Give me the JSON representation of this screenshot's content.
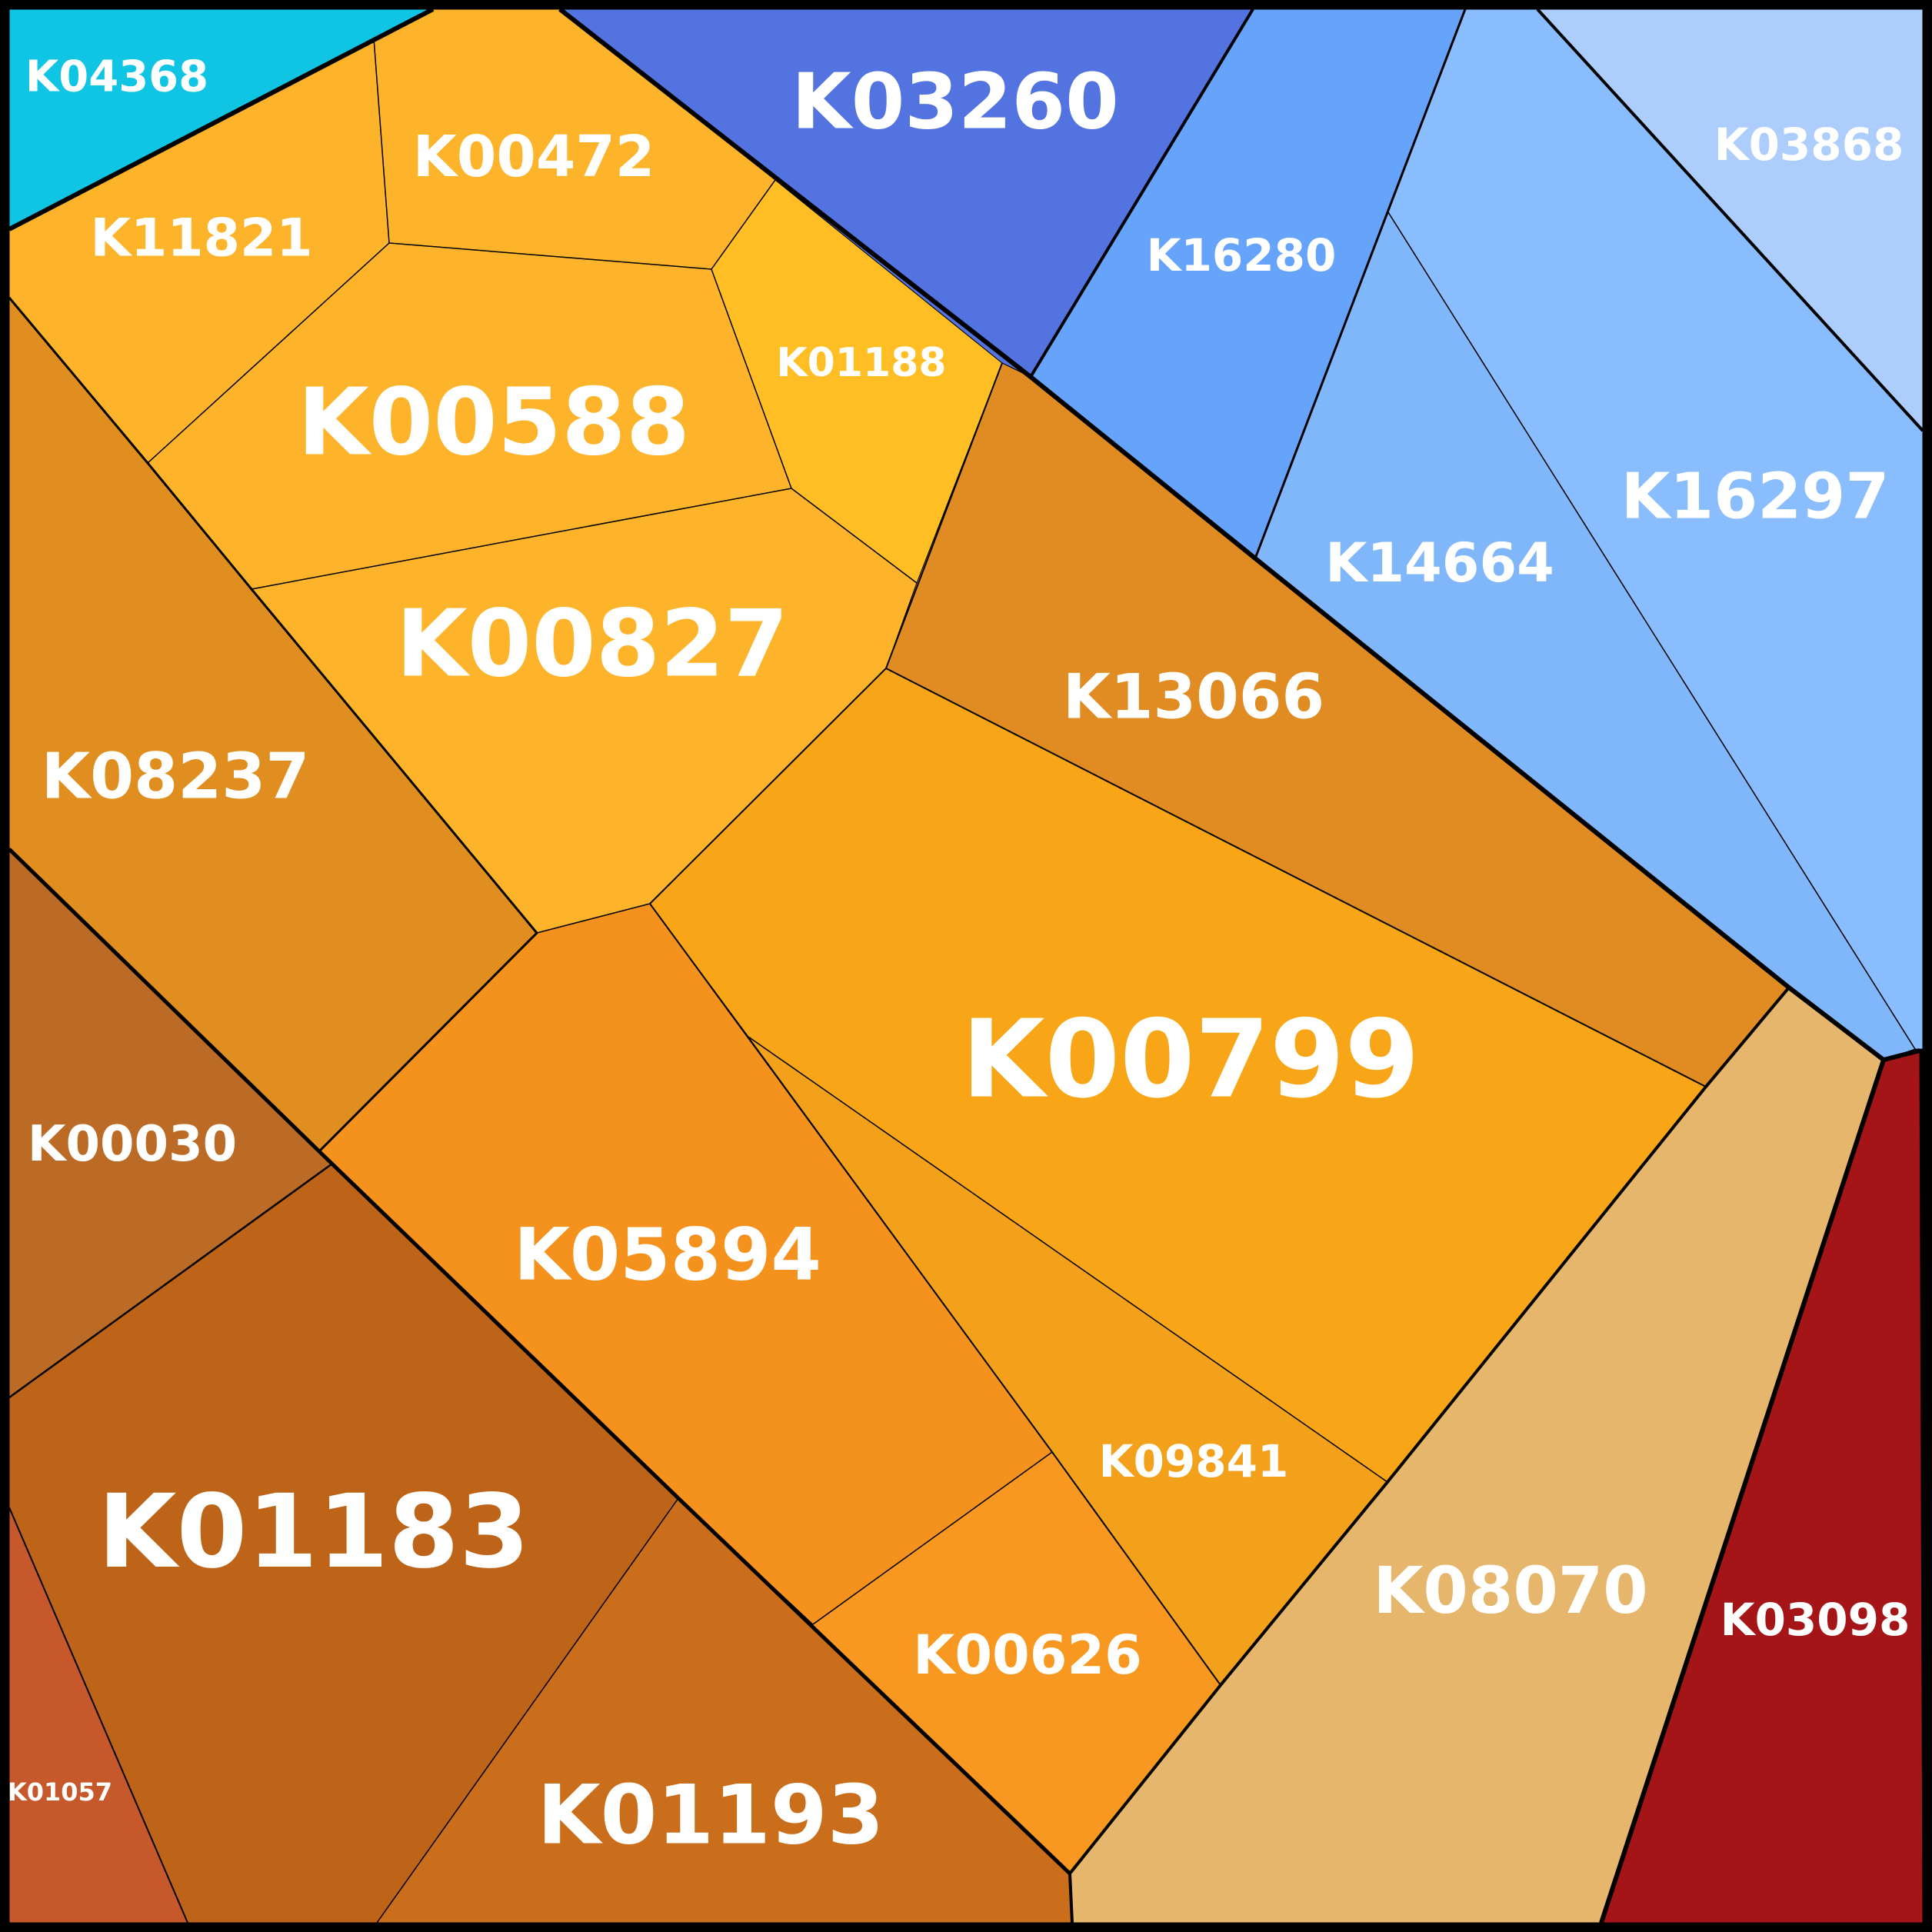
{
  "title": "",
  "cells": [
    {
      "id": "K04368",
      "label": "K04368",
      "color": "#10C5E4"
    },
    {
      "id": "K11821",
      "label": "K11821",
      "color": "#FDB42A"
    },
    {
      "id": "K00472",
      "label": "K00472",
      "color": "#FDB42A"
    },
    {
      "id": "K00588",
      "label": "K00588",
      "color": "#FDB42A"
    },
    {
      "id": "K01188",
      "label": "K01188",
      "color": "#FFBE24"
    },
    {
      "id": "K00827",
      "label": "K00827",
      "color": "#FDB42A"
    },
    {
      "id": "K08237",
      "label": "K08237",
      "color": "#E08E1F"
    },
    {
      "id": "K03260",
      "label": "K03260",
      "color": "#5273E0"
    },
    {
      "id": "K16280",
      "label": "K16280",
      "color": "#66A3FB"
    },
    {
      "id": "K03868",
      "label": "K03868",
      "color": "#ADCDFD"
    },
    {
      "id": "K16297",
      "label": "K16297",
      "color": "#8ABDFD"
    },
    {
      "id": "K14664",
      "label": "K14664",
      "color": "#80B6FA"
    },
    {
      "id": "K13066",
      "label": "K13066",
      "color": "#E08C23"
    },
    {
      "id": "K00799",
      "label": "K00799",
      "color": "#F8A617"
    },
    {
      "id": "K05894",
      "label": "K05894",
      "color": "#F5921E"
    },
    {
      "id": "K09841",
      "label": "K09841",
      "color": "#F3A01B"
    },
    {
      "id": "K00626",
      "label": "K00626",
      "color": "#F89820"
    },
    {
      "id": "K00030",
      "label": "K00030",
      "color": "#BC6B26"
    },
    {
      "id": "K01183",
      "label": "K01183",
      "color": "#BE6418"
    },
    {
      "id": "K01057",
      "label": "K01057",
      "color": "#C6582C"
    },
    {
      "id": "K01193",
      "label": "K01193",
      "color": "#CA6E1C"
    },
    {
      "id": "K08070",
      "label": "K08070",
      "color": "#E6B66C"
    },
    {
      "id": "K03098",
      "label": "K03098",
      "color": "#A51518"
    }
  ]
}
